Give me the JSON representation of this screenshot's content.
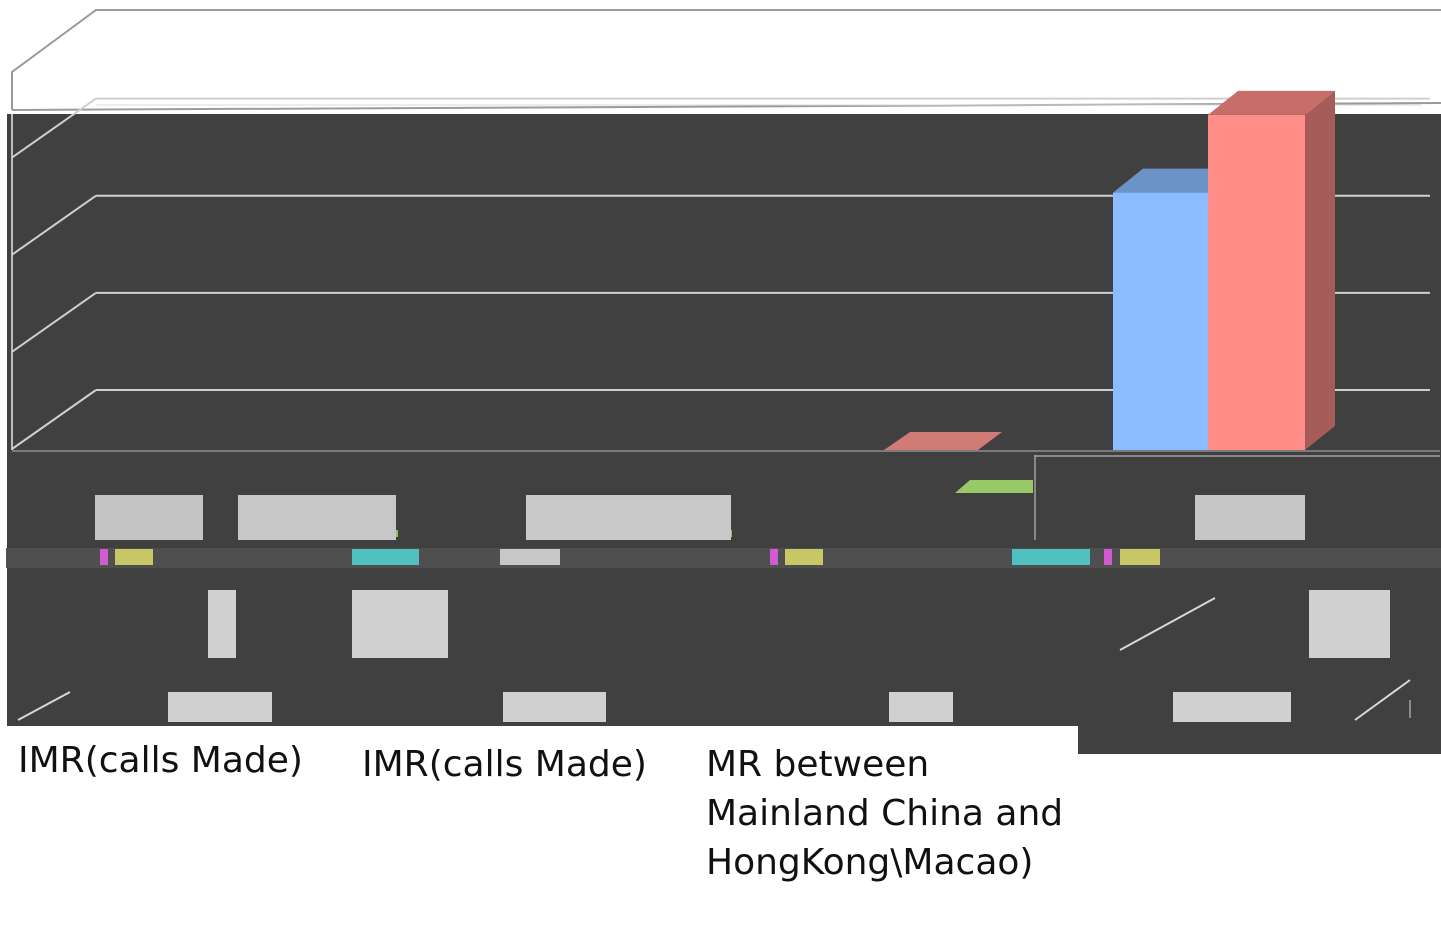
{
  "chart_data": {
    "type": "bar",
    "rendering": "3d-clustered",
    "title": "",
    "xlabel": "",
    "ylabel": "",
    "categories": [
      "IMR(calls Made)",
      "IMR(calls Made)",
      "MR between Mainland China and HongKong\\Macao)",
      ""
    ],
    "series": [
      {
        "color": "#8bbcff",
        "values": [
          0.0,
          0.0,
          0.0,
          265
        ]
      },
      {
        "color": "#ff8d88",
        "values": [
          0.0,
          0.0,
          0.0,
          345
        ]
      }
    ],
    "grid": true,
    "legend": "none"
  },
  "colors": {
    "background": "#404040",
    "gridline": "#cfcfcf",
    "axis": "#bdbdbd",
    "top_outline": "#9a9a9a"
  }
}
